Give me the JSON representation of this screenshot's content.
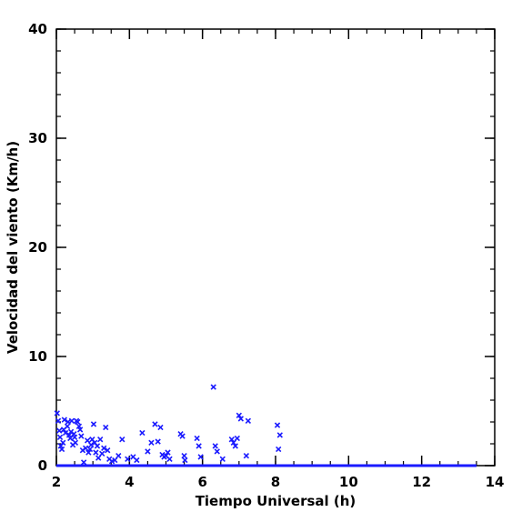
{
  "chart_data": {
    "type": "scatter",
    "xlabel": "Tiempo Universal (h)",
    "ylabel": "Velocidad del viento (Km/h)",
    "xlim": [
      2,
      14
    ],
    "ylim": [
      0,
      40
    ],
    "x_ticks": [
      2,
      4,
      6,
      8,
      10,
      12,
      14
    ],
    "y_ticks": [
      0,
      10,
      20,
      30,
      40
    ],
    "x_minor_step": 0.5,
    "y_minor_step": 2,
    "grid": false,
    "marker": "x",
    "colors": {
      "points": "#1a1aff",
      "axes": "#000000"
    },
    "series": [
      {
        "values_x": [
          2.02,
          2.05,
          2.08,
          2.1,
          2.12,
          2.15,
          2.18,
          2.2,
          2.22,
          2.25,
          2.3,
          2.32,
          2.35,
          2.38,
          2.4,
          2.42,
          2.45,
          2.48,
          2.5,
          2.52,
          2.55,
          2.58,
          2.62,
          2.65,
          2.68,
          2.72,
          2.75,
          2.8,
          2.85,
          2.88,
          2.92,
          2.95,
          2.98,
          3.02,
          3.05,
          3.08,
          3.12,
          3.15,
          3.2,
          3.25,
          3.3,
          3.35,
          3.4,
          3.45,
          3.52,
          3.6,
          3.7,
          3.8,
          3.95,
          4.1,
          4.2,
          4.35,
          4.5,
          4.6,
          4.7,
          4.78,
          4.85,
          4.9,
          4.95,
          5.0,
          5.05,
          5.1,
          5.4,
          5.45,
          5.5,
          5.52,
          5.85,
          5.9,
          5.95,
          6.3,
          6.35,
          6.4,
          6.55,
          6.8,
          6.85,
          6.9,
          6.95,
          7.0,
          7.05,
          7.2,
          7.25,
          8.05,
          8.08,
          8.12
        ],
        "values_y": [
          4.8,
          4.1,
          3.2,
          2.6,
          1.8,
          1.5,
          2.1,
          3.3,
          4.2,
          3.0,
          3.6,
          4.0,
          2.8,
          2.5,
          3.1,
          4.1,
          1.9,
          2.9,
          2.6,
          2.1,
          4.1,
          4.0,
          3.6,
          3.3,
          2.7,
          1.4,
          0.3,
          1.6,
          2.3,
          1.2,
          1.5,
          1.9,
          2.4,
          3.8,
          2.1,
          1.2,
          1.8,
          0.7,
          2.4,
          1.1,
          1.6,
          3.5,
          1.4,
          0.6,
          0.4,
          0.5,
          0.9,
          2.4,
          0.6,
          0.8,
          0.5,
          3.0,
          1.3,
          2.1,
          3.8,
          2.2,
          3.5,
          1.0,
          0.8,
          0.9,
          1.2,
          0.6,
          2.9,
          2.7,
          0.9,
          0.5,
          2.5,
          1.8,
          0.8,
          7.2,
          1.8,
          1.3,
          0.6,
          2.4,
          2.1,
          1.8,
          2.5,
          4.6,
          4.3,
          0.9,
          4.1,
          3.7,
          1.5,
          2.8
        ],
        "zero_segment_x": [
          2.0,
          13.5
        ],
        "zero_segment_y": 0
      }
    ]
  }
}
